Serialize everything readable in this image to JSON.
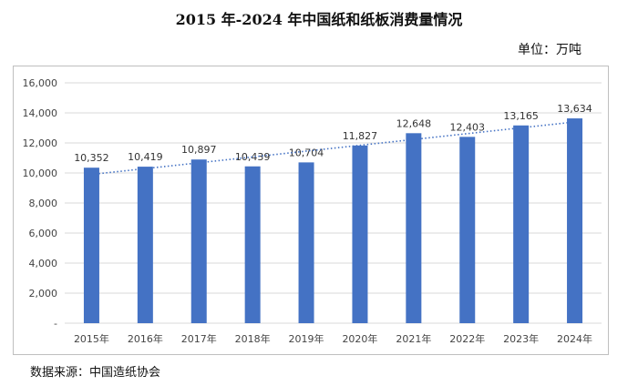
{
  "title": "2015 年-2024 年中国纸和纸板消费量情况",
  "unit_label": "单位：万吨",
  "source_label": "数据来源：中国造纸协会",
  "colors": {
    "bar": "#4472C4",
    "trendline": "#4472C4",
    "gridline": "#d9d9d9"
  },
  "chart_data": {
    "type": "bar",
    "categories": [
      "2015年",
      "2016年",
      "2017年",
      "2018年",
      "2019年",
      "2020年",
      "2021年",
      "2022年",
      "2023年",
      "2024年"
    ],
    "values": [
      10352,
      10419,
      10897,
      10439,
      10704,
      11827,
      12648,
      12403,
      13165,
      13634
    ],
    "data_labels": [
      "10,352",
      "10,419",
      "10,897",
      "10,439",
      "10,704",
      "11,827",
      "12,648",
      "12,403",
      "13,165",
      "13,634"
    ],
    "y_ticks": [
      "-",
      "2,000",
      "4,000",
      "6,000",
      "8,000",
      "10,000",
      "12,000",
      "14,000",
      "16,000"
    ],
    "ylim": [
      0,
      16000
    ],
    "grid": true,
    "trendline": "linear, dotted",
    "legend": "none"
  }
}
